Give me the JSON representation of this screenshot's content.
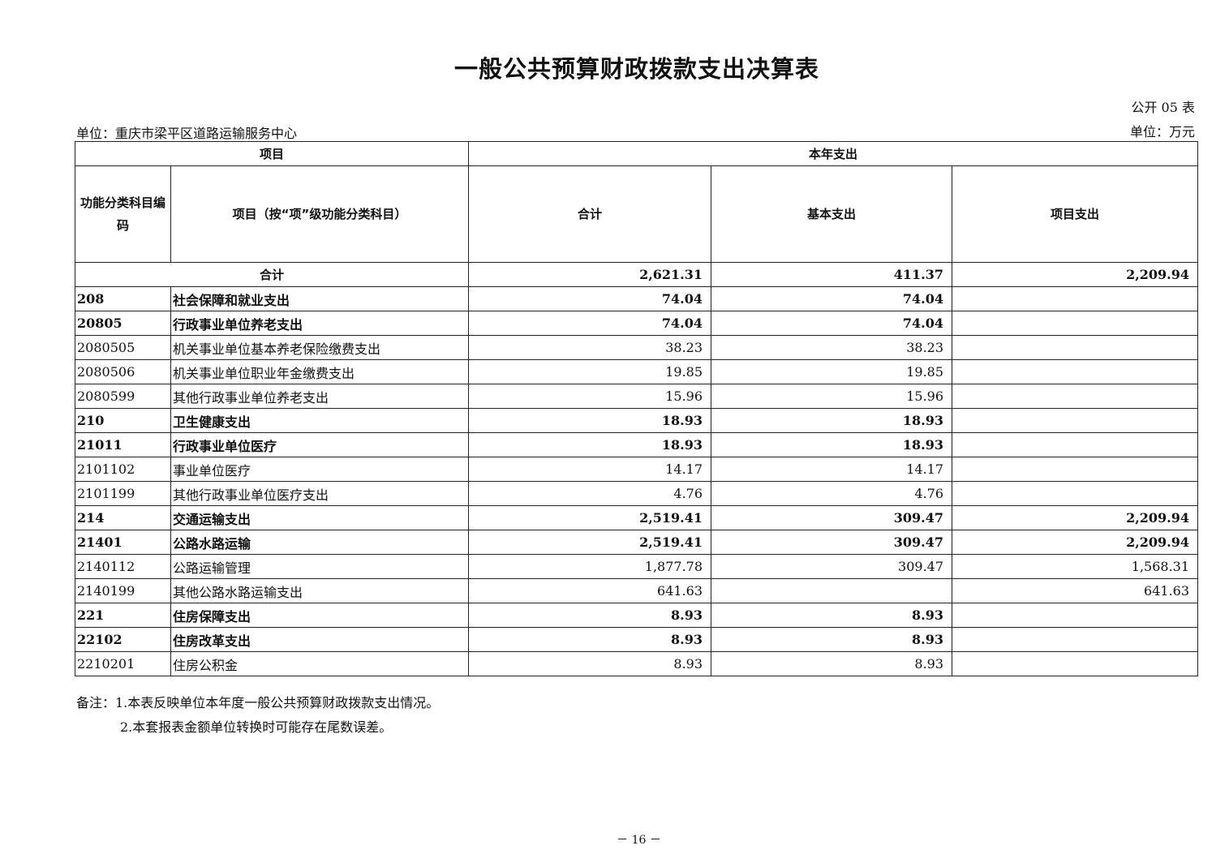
{
  "title": "一般公共预算财政拨款支出决算表",
  "table_no": "公开 05 表",
  "unit_org": "单位：重庆市梁平区道路运输服务中心",
  "unit_currency": "单位：万元",
  "headers": {
    "project": "项目",
    "current_year": "本年支出",
    "code": "功能分类科目编码",
    "item": "项目（按“项”级功能分类科目）",
    "total": "合计",
    "basic": "基本支出",
    "project_exp": "项目支出"
  },
  "total_row": {
    "label": "合计",
    "total": "2,621.31",
    "basic": "411.37",
    "project": "2,209.94"
  },
  "rows": [
    {
      "code": "208",
      "name": "社会保障和就业支出",
      "total": "74.04",
      "basic": "74.04",
      "project": "",
      "bold": true
    },
    {
      "code": "20805",
      "name": "行政事业单位养老支出",
      "total": "74.04",
      "basic": "74.04",
      "project": "",
      "bold": true
    },
    {
      "code": "2080505",
      "name": "机关事业单位基本养老保险缴费支出",
      "total": "38.23",
      "basic": "38.23",
      "project": "",
      "bold": false
    },
    {
      "code": "2080506",
      "name": "机关事业单位职业年金缴费支出",
      "total": "19.85",
      "basic": "19.85",
      "project": "",
      "bold": false
    },
    {
      "code": "2080599",
      "name": "其他行政事业单位养老支出",
      "total": "15.96",
      "basic": "15.96",
      "project": "",
      "bold": false
    },
    {
      "code": "210",
      "name": "卫生健康支出",
      "total": "18.93",
      "basic": "18.93",
      "project": "",
      "bold": true
    },
    {
      "code": "21011",
      "name": "行政事业单位医疗",
      "total": "18.93",
      "basic": "18.93",
      "project": "",
      "bold": true
    },
    {
      "code": "2101102",
      "name": "事业单位医疗",
      "total": "14.17",
      "basic": "14.17",
      "project": "",
      "bold": false
    },
    {
      "code": "2101199",
      "name": "其他行政事业单位医疗支出",
      "total": "4.76",
      "basic": "4.76",
      "project": "",
      "bold": false
    },
    {
      "code": "214",
      "name": "交通运输支出",
      "total": "2,519.41",
      "basic": "309.47",
      "project": "2,209.94",
      "bold": true
    },
    {
      "code": "21401",
      "name": "公路水路运输",
      "total": "2,519.41",
      "basic": "309.47",
      "project": "2,209.94",
      "bold": true
    },
    {
      "code": "2140112",
      "name": "公路运输管理",
      "total": "1,877.78",
      "basic": "309.47",
      "project": "1,568.31",
      "bold": false
    },
    {
      "code": "2140199",
      "name": "其他公路水路运输支出",
      "total": "641.63",
      "basic": "",
      "project": "641.63",
      "bold": false
    },
    {
      "code": "221",
      "name": "住房保障支出",
      "total": "8.93",
      "basic": "8.93",
      "project": "",
      "bold": true
    },
    {
      "code": "22102",
      "name": "住房改革支出",
      "total": "8.93",
      "basic": "8.93",
      "project": "",
      "bold": true
    },
    {
      "code": "2210201",
      "name": "住房公积金",
      "total": "8.93",
      "basic": "8.93",
      "project": "",
      "bold": false
    }
  ],
  "notes": [
    "备注：1.本表反映单位本年度一般公共预算财政拨款支出情况。",
    "2.本套报表金额单位转换时可能存在尾数误差。"
  ],
  "page_number": "－ 16 －"
}
